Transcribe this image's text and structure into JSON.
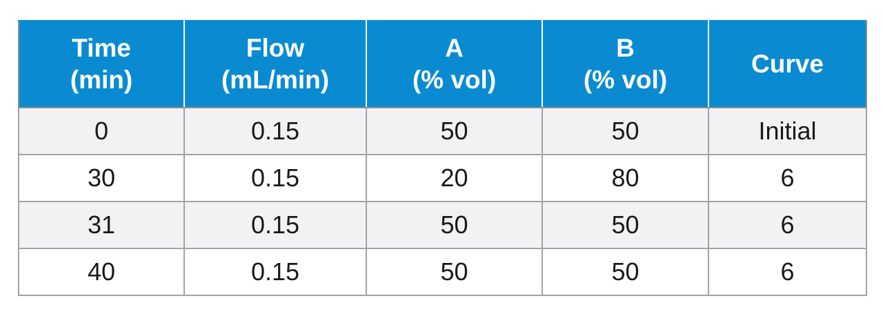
{
  "table": {
    "headers": [
      {
        "line1": "Time",
        "line2": "(min)"
      },
      {
        "line1": "Flow",
        "line2": "(mL/min)"
      },
      {
        "line1": "A",
        "line2": "(% vol)"
      },
      {
        "line1": "B",
        "line2": "(% vol)"
      },
      {
        "line1": "Curve",
        "line2": ""
      }
    ],
    "rows": [
      [
        "0",
        "0.15",
        "50",
        "50",
        "Initial"
      ],
      [
        "30",
        "0.15",
        "20",
        "80",
        "6"
      ],
      [
        "31",
        "0.15",
        "50",
        "50",
        "6"
      ],
      [
        "40",
        "0.15",
        "50",
        "50",
        "6"
      ]
    ]
  },
  "colors": {
    "header_background": "#0a8bd1",
    "header_text": "#ffffff",
    "row_shaded": "#f2f2f4",
    "row_plain": "#ffffff",
    "border": "#a3a3a3"
  }
}
